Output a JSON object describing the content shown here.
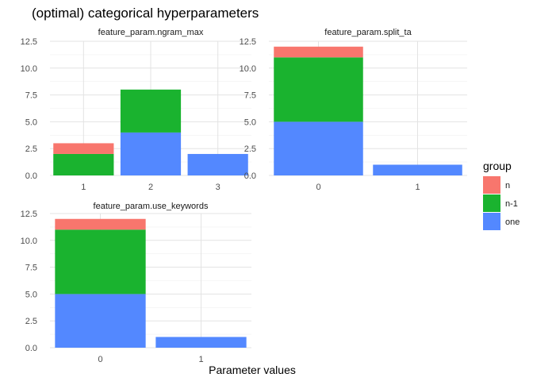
{
  "title": "(optimal) categorical hyperparameters",
  "xlabel": "Parameter values",
  "legend": {
    "title": "group",
    "position": "right",
    "items": [
      {
        "key": "n",
        "label": "n",
        "color": "#F8766D"
      },
      {
        "key": "n-1",
        "label": "n-1",
        "color": "#1AB32F"
      },
      {
        "key": "one",
        "label": "one",
        "color": "#5388FF"
      }
    ]
  },
  "chart_data": [
    {
      "type": "bar",
      "stacked": true,
      "title": "feature_param.ngram_max",
      "categories": [
        "1",
        "2",
        "3"
      ],
      "series": [
        {
          "name": "one",
          "values": [
            0,
            4,
            2
          ]
        },
        {
          "name": "n-1",
          "values": [
            2,
            4,
            0
          ]
        },
        {
          "name": "n",
          "values": [
            1,
            0,
            0
          ]
        }
      ],
      "ylim": [
        0,
        12.5
      ],
      "yticks": [
        "0.0",
        "2.5",
        "5.0",
        "7.5",
        "10.0",
        "12.5"
      ],
      "grid": true
    },
    {
      "type": "bar",
      "stacked": true,
      "title": "feature_param.split_ta",
      "categories": [
        "0",
        "1"
      ],
      "series": [
        {
          "name": "one",
          "values": [
            5,
            1
          ]
        },
        {
          "name": "n-1",
          "values": [
            6,
            0
          ]
        },
        {
          "name": "n",
          "values": [
            1,
            0
          ]
        }
      ],
      "ylim": [
        0,
        12.5
      ],
      "yticks": [
        "0.0",
        "2.5",
        "5.0",
        "7.5",
        "10.0",
        "12.5"
      ],
      "grid": true
    },
    {
      "type": "bar",
      "stacked": true,
      "title": "feature_param.use_keywords",
      "categories": [
        "0",
        "1"
      ],
      "series": [
        {
          "name": "one",
          "values": [
            5,
            1
          ]
        },
        {
          "name": "n-1",
          "values": [
            6,
            0
          ]
        },
        {
          "name": "n",
          "values": [
            1,
            0
          ]
        }
      ],
      "ylim": [
        0,
        12.5
      ],
      "yticks": [
        "0.0",
        "2.5",
        "5.0",
        "7.5",
        "10.0",
        "12.5"
      ],
      "grid": true
    }
  ]
}
